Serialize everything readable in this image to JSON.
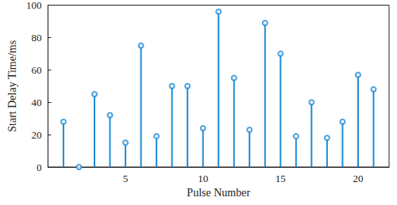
{
  "chart_data": {
    "type": "stem",
    "x_label": "Pulse Number",
    "y_label": "Start Delay Time/ms",
    "x": [
      1,
      2,
      3,
      4,
      5,
      6,
      7,
      8,
      9,
      10,
      11,
      12,
      13,
      14,
      15,
      16,
      17,
      18,
      19,
      20,
      21
    ],
    "values": [
      28,
      0,
      45,
      32,
      15,
      75,
      19,
      50,
      50,
      24,
      96,
      55,
      23,
      89,
      70,
      19,
      40,
      18,
      28,
      57,
      48
    ],
    "color": "#1f8bd6",
    "marker": "circle",
    "xlim": [
      0,
      22
    ],
    "xticks": [
      5,
      10,
      15,
      20
    ],
    "ylim": [
      0,
      100
    ],
    "yticks": [
      0,
      20,
      40,
      60,
      80,
      100
    ],
    "grid": false
  }
}
